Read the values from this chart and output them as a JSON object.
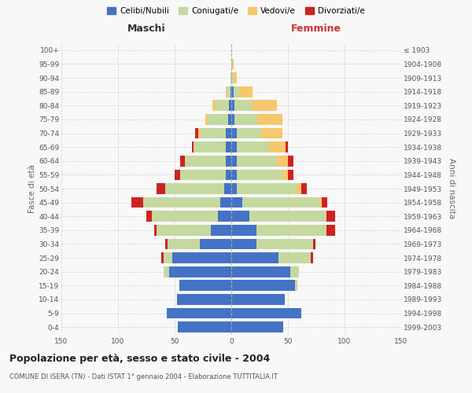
{
  "age_groups": [
    "0-4",
    "5-9",
    "10-14",
    "15-19",
    "20-24",
    "25-29",
    "30-34",
    "35-39",
    "40-44",
    "45-49",
    "50-54",
    "55-59",
    "60-64",
    "65-69",
    "70-74",
    "75-79",
    "80-84",
    "85-89",
    "90-94",
    "95-99",
    "100+"
  ],
  "birth_years": [
    "1999-2003",
    "1994-1998",
    "1989-1993",
    "1984-1988",
    "1979-1983",
    "1974-1978",
    "1969-1973",
    "1964-1968",
    "1959-1963",
    "1954-1958",
    "1949-1953",
    "1944-1948",
    "1939-1943",
    "1934-1938",
    "1929-1933",
    "1924-1928",
    "1919-1923",
    "1914-1918",
    "1909-1913",
    "1904-1908",
    "≤ 1903"
  ],
  "maschi": {
    "celibi": [
      47,
      57,
      48,
      46,
      55,
      52,
      28,
      18,
      12,
      10,
      6,
      5,
      5,
      5,
      5,
      3,
      2,
      1,
      0,
      0,
      0
    ],
    "coniugati": [
      0,
      0,
      0,
      0,
      5,
      8,
      28,
      48,
      58,
      68,
      52,
      40,
      36,
      28,
      22,
      18,
      12,
      3,
      1,
      0,
      0
    ],
    "vedovi": [
      0,
      0,
      0,
      0,
      0,
      0,
      0,
      0,
      0,
      0,
      0,
      0,
      0,
      0,
      2,
      2,
      3,
      1,
      0,
      0,
      0
    ],
    "divorziati": [
      0,
      0,
      0,
      0,
      0,
      2,
      2,
      2,
      5,
      10,
      8,
      5,
      4,
      2,
      3,
      0,
      0,
      0,
      0,
      0,
      0
    ]
  },
  "femmine": {
    "nubili": [
      46,
      62,
      47,
      56,
      52,
      42,
      22,
      22,
      16,
      10,
      5,
      5,
      5,
      5,
      5,
      3,
      3,
      2,
      0,
      0,
      0
    ],
    "coniugate": [
      0,
      0,
      0,
      2,
      8,
      28,
      50,
      62,
      68,
      68,
      52,
      40,
      35,
      28,
      22,
      20,
      15,
      5,
      2,
      0,
      0
    ],
    "vedove": [
      0,
      0,
      0,
      0,
      0,
      0,
      0,
      0,
      0,
      2,
      5,
      5,
      10,
      15,
      18,
      22,
      22,
      12,
      3,
      2,
      0
    ],
    "divorziate": [
      0,
      0,
      0,
      0,
      0,
      2,
      2,
      8,
      8,
      5,
      5,
      5,
      5,
      2,
      0,
      0,
      0,
      0,
      0,
      0,
      0
    ]
  },
  "colors": {
    "celibi": "#4472C4",
    "coniugati": "#C5D8A0",
    "vedovi": "#F5C86E",
    "divorziati": "#CC2222"
  },
  "title": "Popolazione per età, sesso e stato civile - 2004",
  "subtitle": "COMUNE DI ISERA (TN) - Dati ISTAT 1° gennaio 2004 - Elaborazione TUTTITALIA.IT",
  "xlabel_left": "Maschi",
  "xlabel_right": "Femmine",
  "ylabel_left": "Fasce di età",
  "ylabel_right": "Anni di nascita",
  "xlim": 150,
  "legend_labels": [
    "Celibi/Nubili",
    "Coniugati/e",
    "Vedovi/e",
    "Divorziati/e"
  ],
  "bg_color": "#f8f8f8",
  "grid_color": "#d0d0d0"
}
